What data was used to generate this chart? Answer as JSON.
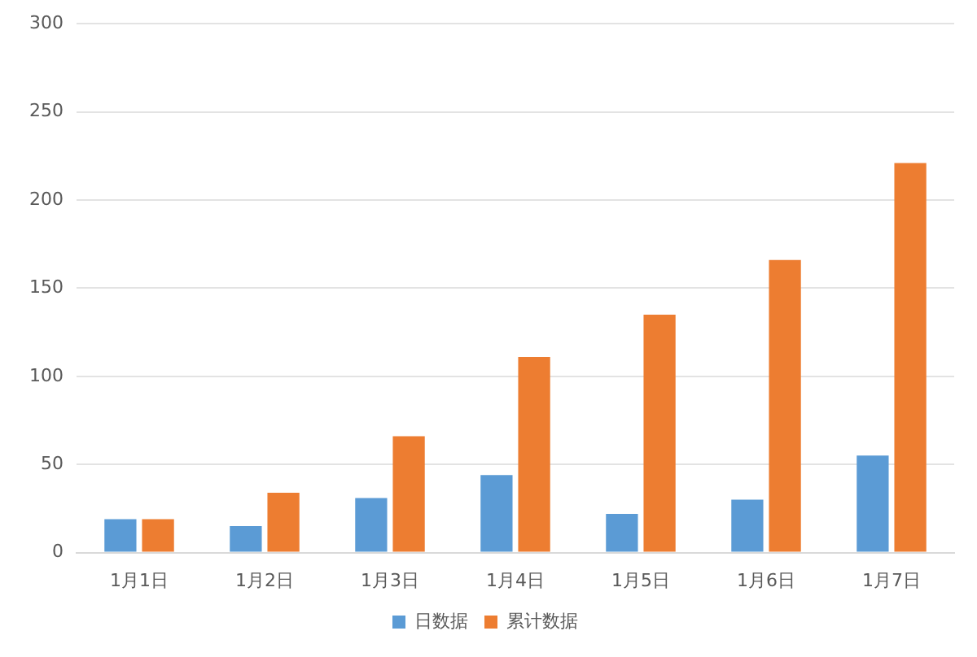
{
  "chart_data": {
    "type": "bar",
    "categories": [
      "1月1日",
      "1月2日",
      "1月3日",
      "1月4日",
      "1月5日",
      "1月6日",
      "1月7日"
    ],
    "series": [
      {
        "name": "日数据",
        "color": "#5b9bd5",
        "values": [
          19,
          15,
          31,
          44,
          22,
          30,
          55
        ]
      },
      {
        "name": "累计数据",
        "color": "#ed7d31",
        "values": [
          19,
          34,
          66,
          111,
          135,
          166,
          221
        ]
      }
    ],
    "ylim": [
      0,
      300
    ],
    "yticks": [
      0,
      50,
      100,
      150,
      200,
      250,
      300
    ],
    "grid": "y",
    "legend": "bottom"
  }
}
